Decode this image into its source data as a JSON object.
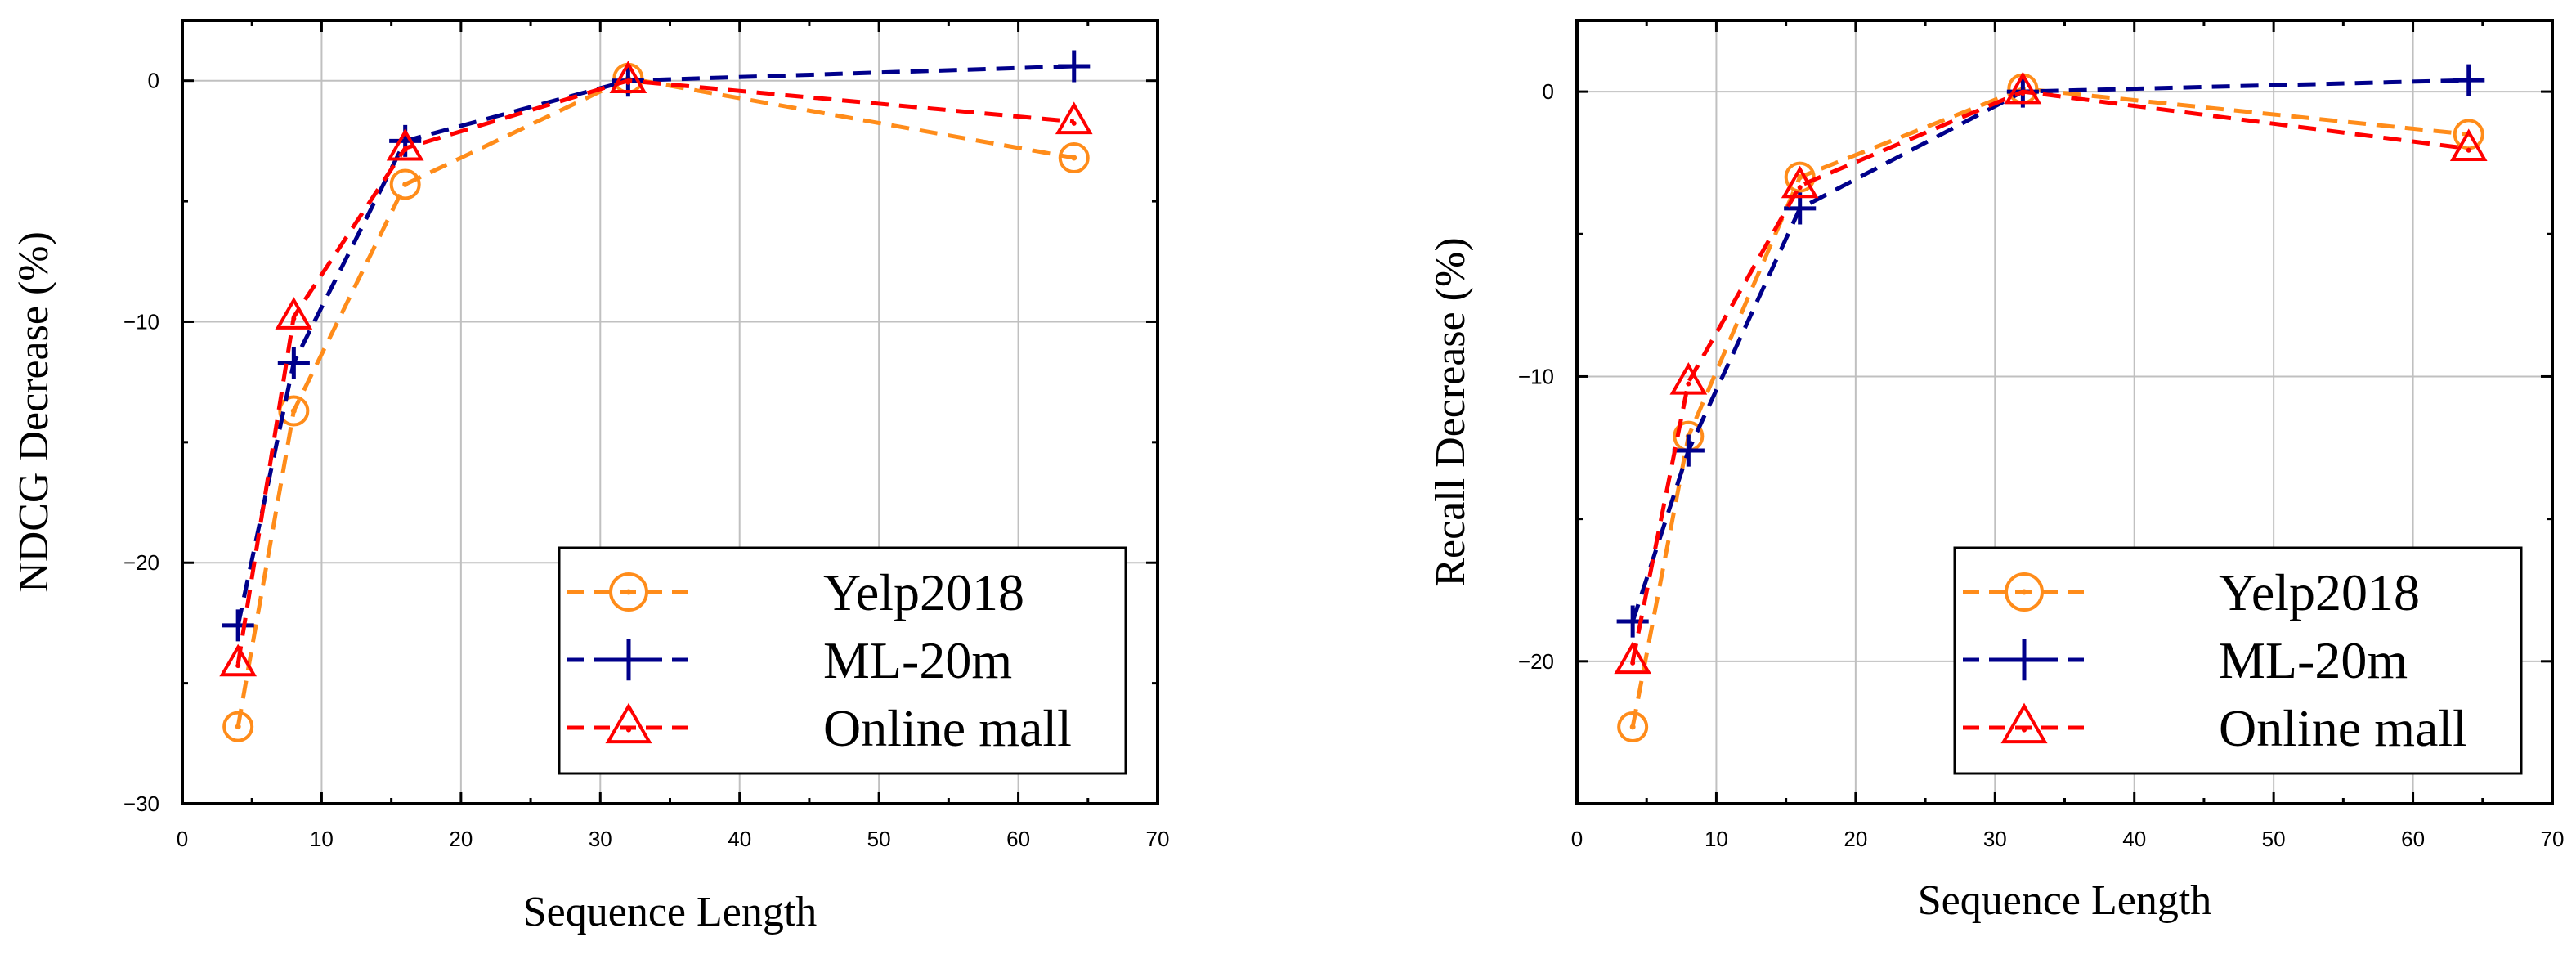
{
  "chart_data": [
    {
      "type": "line",
      "panel": "left",
      "title": "",
      "xlabel": "Sequence  Length",
      "ylabel": "NDCG  Decrease (%)",
      "xlim": [
        0,
        70
      ],
      "ylim": [
        -30,
        2.5
      ],
      "xticks": [
        0,
        10,
        20,
        30,
        40,
        50,
        60,
        70
      ],
      "yticks": [
        -30,
        -20,
        -10,
        0
      ],
      "grid": true,
      "legend_position": "bottom-right",
      "x": [
        4,
        8,
        16,
        32,
        64
      ],
      "series": [
        {
          "name": "Yelp2018",
          "color": "#FF8C1A",
          "marker": "circle",
          "values": [
            -26.8,
            -13.7,
            -4.3,
            0.1,
            -3.2
          ]
        },
        {
          "name": "ML-20m",
          "color": "#00008B",
          "marker": "plus",
          "values": [
            -22.6,
            -11.7,
            -2.5,
            0.0,
            0.6
          ]
        },
        {
          "name": "Online mall",
          "color": "#FF0000",
          "marker": "triangle",
          "values": [
            -24.2,
            -9.8,
            -2.8,
            0.0,
            -1.7
          ]
        }
      ]
    },
    {
      "type": "line",
      "panel": "right",
      "title": "",
      "xlabel": "Sequence Length",
      "ylabel": "Recall  Decrease (%)",
      "xlim": [
        0,
        70
      ],
      "ylim": [
        -25,
        2.5
      ],
      "xticks": [
        0,
        10,
        20,
        30,
        40,
        50,
        60,
        70
      ],
      "yticks": [
        -20,
        -10,
        0
      ],
      "grid": true,
      "legend_position": "bottom-right",
      "x": [
        4,
        8,
        16,
        32,
        64
      ],
      "series": [
        {
          "name": "Yelp2018",
          "color": "#FF8C1A",
          "marker": "circle",
          "values": [
            -22.3,
            -12.1,
            -3.0,
            0.1,
            -1.5
          ]
        },
        {
          "name": "ML-20m",
          "color": "#00008B",
          "marker": "plus",
          "values": [
            -18.6,
            -12.6,
            -4.1,
            0.0,
            0.4
          ]
        },
        {
          "name": "Online mall",
          "color": "#FF0000",
          "marker": "triangle",
          "values": [
            -20.0,
            -10.2,
            -3.3,
            0.0,
            -2.0
          ]
        }
      ]
    }
  ]
}
